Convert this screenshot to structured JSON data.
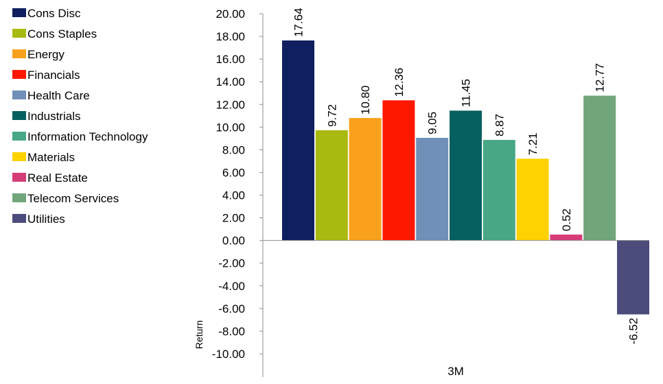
{
  "chart_data": {
    "type": "bar",
    "categories": [
      "3M"
    ],
    "series": [
      {
        "name": "Cons Disc",
        "values": [
          17.64
        ],
        "color": "#0f1f5f"
      },
      {
        "name": "Cons Staples",
        "values": [
          9.72
        ],
        "color": "#a8b910"
      },
      {
        "name": "Energy",
        "values": [
          10.8
        ],
        "color": "#f9a11d"
      },
      {
        "name": "Financials",
        "values": [
          12.36
        ],
        "color": "#fe1800"
      },
      {
        "name": "Health Care",
        "values": [
          9.05
        ],
        "color": "#7190b8"
      },
      {
        "name": "Industrials",
        "values": [
          11.45
        ],
        "color": "#066060"
      },
      {
        "name": "Information Technology",
        "values": [
          8.87
        ],
        "color": "#48a886"
      },
      {
        "name": "Materials",
        "values": [
          7.21
        ],
        "color": "#fed100"
      },
      {
        "name": "Real Estate",
        "values": [
          0.52
        ],
        "color": "#d63c78"
      },
      {
        "name": "Telecom Services",
        "values": [
          12.77
        ],
        "color": "#70a67a"
      },
      {
        "name": "Utilities",
        "values": [
          -6.52
        ],
        "color": "#4b4b7c"
      }
    ],
    "data_labels": [
      "17.64",
      "9.72",
      "10.80",
      "12.36",
      "9.05",
      "11.45",
      "8.87",
      "7.21",
      "0.52",
      "12.77",
      "-6.52"
    ],
    "y_ticks": [
      "20.00",
      "18.00",
      "16.00",
      "14.00",
      "12.00",
      "10.00",
      "8.00",
      "6.00",
      "4.00",
      "2.00",
      "0.00",
      "-2.00",
      "-4.00",
      "-6.00",
      "-8.00",
      "-10.00"
    ],
    "ylim": [
      -10,
      20
    ],
    "ylabel": "Return",
    "xlabel": "",
    "title": "",
    "grid": false,
    "legend_position": "left"
  }
}
